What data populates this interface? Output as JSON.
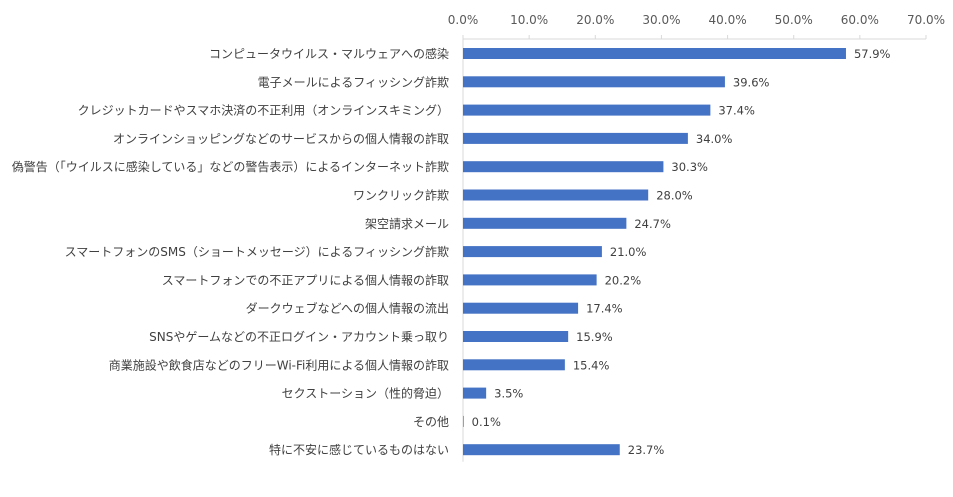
{
  "chart_data": {
    "type": "bar",
    "orientation": "horizontal",
    "categories": [
      "コンピュータウイルス・マルウェアへの感染",
      "電子メールによるフィッシング詐欺",
      "クレジットカードやスマホ決済の不正利用（オンラインスキミング）",
      "オンラインショッピングなどのサービスからの個人情報の詐取",
      "偽警告（「ウイルスに感染している」などの警告表示）によるインターネット詐欺",
      "ワンクリック詐欺",
      "架空請求メール",
      "スマートフォンのSMS（ショートメッセージ）によるフィッシング詐欺",
      "スマートフォンでの不正アプリによる個人情報の詐取",
      "ダークウェブなどへの個人情報の流出",
      "SNSやゲームなどの不正ログイン・アカウント乗っ取り",
      "商業施設や飲食店などのフリーWi-Fi利用による個人情報の詐取",
      "セクストーション（性的脅迫）",
      "その他",
      "特に不安に感じているものはない"
    ],
    "values": [
      57.9,
      39.6,
      37.4,
      34.0,
      30.3,
      28.0,
      24.7,
      21.0,
      20.2,
      17.4,
      15.9,
      15.4,
      3.5,
      0.1,
      23.7
    ],
    "value_labels": [
      "57.9%",
      "39.6%",
      "37.4%",
      "34.0%",
      "30.3%",
      "28.0%",
      "24.7%",
      "21.0%",
      "20.2%",
      "17.4%",
      "15.9%",
      "15.4%",
      "3.5%",
      "0.1%",
      "23.7%"
    ],
    "xlim": [
      0,
      70
    ],
    "x_ticks": [
      0,
      10,
      20,
      30,
      40,
      50,
      60,
      70
    ],
    "x_tick_labels": [
      "0.0%",
      "10.0%",
      "20.0%",
      "30.0%",
      "40.0%",
      "50.0%",
      "60.0%",
      "70.0%"
    ],
    "x_axis_position": "top",
    "grid": false,
    "legend": "none",
    "bar_color": "#4472C4",
    "axis_color": "#D9D9D9",
    "title": "",
    "xlabel": "",
    "ylabel": ""
  }
}
